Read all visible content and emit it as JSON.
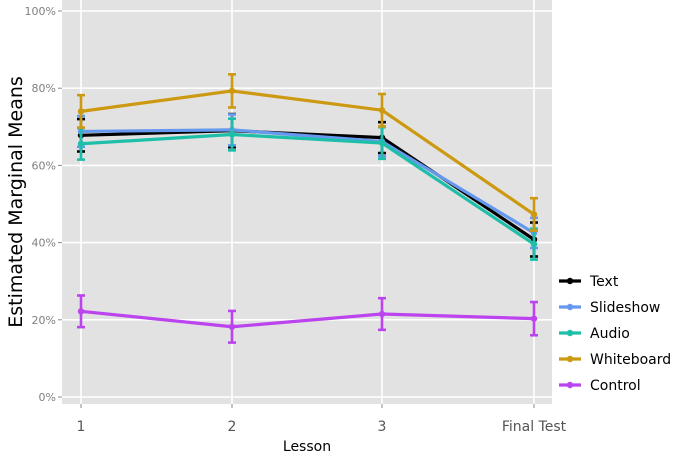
{
  "chart_data": {
    "type": "line",
    "title": "",
    "xlabel": "Lesson",
    "ylabel": "Estimated Marginal Means",
    "categories": [
      "1",
      "2",
      "3",
      "Final Test"
    ],
    "ylim": [
      0,
      100
    ],
    "yticks": [
      "0%",
      "20%",
      "40%",
      "60%",
      "80%",
      "100%"
    ],
    "ytick_values": [
      0,
      20,
      40,
      60,
      80,
      100
    ],
    "grid": true,
    "legend_position": "right",
    "series": [
      {
        "name": "Text",
        "color": "#000000",
        "values": [
          67.8,
          69.0,
          67.2,
          40.8
        ],
        "errors": [
          4.2,
          4.3,
          4.0,
          4.4
        ]
      },
      {
        "name": "Slideshow",
        "color": "#6699ee",
        "values": [
          68.8,
          69.2,
          66.2,
          42.5
        ],
        "errors": [
          4.0,
          4.0,
          3.8,
          3.9
        ]
      },
      {
        "name": "Audio",
        "color": "#1ebfa8",
        "values": [
          65.6,
          68.0,
          65.8,
          39.6
        ],
        "errors": [
          4.1,
          4.1,
          4.1,
          4.0
        ]
      },
      {
        "name": "Whiteboard",
        "color": "#cc9911",
        "values": [
          74.0,
          79.3,
          74.3,
          47.3
        ],
        "errors": [
          4.2,
          4.3,
          4.2,
          4.2
        ]
      },
      {
        "name": "Control",
        "color": "#bb44ee",
        "values": [
          22.2,
          18.2,
          21.5,
          20.3
        ],
        "errors": [
          4.1,
          4.1,
          4.1,
          4.3
        ]
      }
    ]
  }
}
